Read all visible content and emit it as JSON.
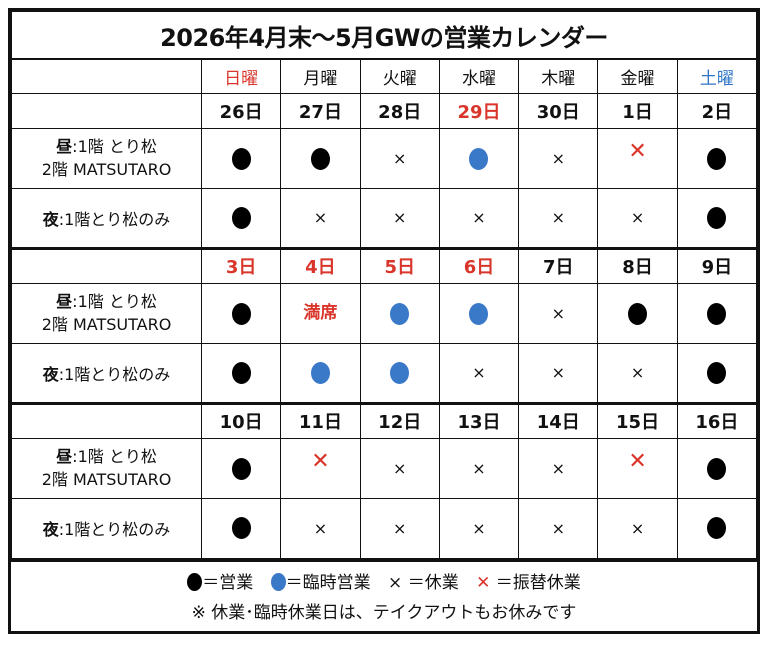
{
  "title": "2026年4月末〜5月GWの営業カレンダー",
  "weekdays": [
    {
      "label": "日曜",
      "color": "red"
    },
    {
      "label": "月曜",
      "color": ""
    },
    {
      "label": "火曜",
      "color": ""
    },
    {
      "label": "水曜",
      "color": ""
    },
    {
      "label": "木曜",
      "color": ""
    },
    {
      "label": "金曜",
      "color": ""
    },
    {
      "label": "土曜",
      "color": "blue"
    }
  ],
  "row_labels": {
    "lunch_prefix": "昼",
    "lunch_line1": ":1階 とり松",
    "lunch_line2": "2階 MATSUTARO",
    "dinner_prefix": "夜",
    "dinner_text": ":1階とり松のみ"
  },
  "weeks": [
    {
      "dates": [
        {
          "d": "26日"
        },
        {
          "d": "27日"
        },
        {
          "d": "28日"
        },
        {
          "d": "29日",
          "red": true
        },
        {
          "d": "30日"
        },
        {
          "d": "1日"
        },
        {
          "d": "2日"
        }
      ],
      "lunch": [
        "open",
        "open",
        "closed",
        "temp",
        "closed",
        "sub",
        "open"
      ],
      "dinner": [
        "open",
        "closed",
        "closed",
        "closed",
        "closed",
        "closed",
        "open"
      ]
    },
    {
      "dates": [
        {
          "d": "3日",
          "red": true
        },
        {
          "d": "4日",
          "red": true
        },
        {
          "d": "5日",
          "red": true
        },
        {
          "d": "6日",
          "red": true
        },
        {
          "d": "7日"
        },
        {
          "d": "8日"
        },
        {
          "d": "9日"
        }
      ],
      "lunch": [
        "open",
        "full",
        "temp",
        "temp",
        "closed",
        "open",
        "open"
      ],
      "dinner": [
        "open",
        "temp",
        "temp",
        "closed",
        "closed",
        "closed",
        "open"
      ]
    },
    {
      "dates": [
        {
          "d": "10日"
        },
        {
          "d": "11日"
        },
        {
          "d": "12日"
        },
        {
          "d": "13日"
        },
        {
          "d": "14日"
        },
        {
          "d": "15日"
        },
        {
          "d": "16日"
        }
      ],
      "lunch": [
        "open",
        "sub",
        "closed",
        "closed",
        "closed",
        "sub",
        "open"
      ],
      "dinner": [
        "open",
        "closed",
        "closed",
        "closed",
        "closed",
        "closed",
        "open"
      ]
    }
  ],
  "symbols": {
    "closed_mark": "×",
    "sub_mark": "✕",
    "full_text": "満席"
  },
  "legend": {
    "open": "＝営業",
    "temp": "＝臨時営業",
    "closed": "× ＝休業",
    "sub_mark": "✕",
    "sub": " ＝振替休業",
    "note": "※ 休業･臨時休業日は、テイクアウトもお休みです"
  },
  "colors": {
    "red": "#d9352b",
    "blue": "#3a78c8"
  }
}
